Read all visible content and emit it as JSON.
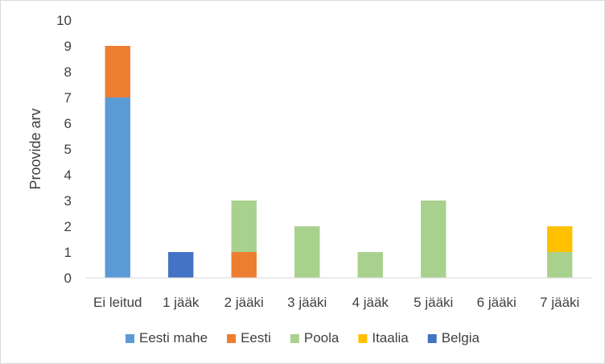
{
  "chart_data": {
    "type": "bar",
    "stacked": true,
    "title": "",
    "xlabel": "",
    "ylabel": "Proovide arv",
    "ylim": [
      0,
      10
    ],
    "yticks": [
      0,
      1,
      2,
      3,
      4,
      5,
      6,
      7,
      8,
      9,
      10
    ],
    "grid": false,
    "legend_position": "bottom",
    "categories": [
      "Ei leitud",
      "1 jääk",
      "2 jääki",
      "3 jääki",
      "4 jääk",
      "5 jääki",
      "6 jääki",
      "7 jääki"
    ],
    "series": [
      {
        "name": "Eesti mahe",
        "color": "#5B9BD5",
        "values": [
          7,
          0,
          0,
          0,
          0,
          0,
          0,
          0
        ]
      },
      {
        "name": "Eesti",
        "color": "#ED7D31",
        "values": [
          2,
          0,
          1,
          0,
          0,
          0,
          0,
          0
        ]
      },
      {
        "name": "Poola",
        "color": "#A9D18E",
        "values": [
          0,
          0,
          2,
          2,
          1,
          3,
          0,
          1
        ]
      },
      {
        "name": "Itaalia",
        "color": "#FFC000",
        "values": [
          0,
          0,
          0,
          0,
          0,
          0,
          0,
          1
        ]
      },
      {
        "name": "Belgia",
        "color": "#4472C4",
        "values": [
          0,
          1,
          0,
          0,
          0,
          0,
          0,
          0
        ]
      }
    ]
  }
}
